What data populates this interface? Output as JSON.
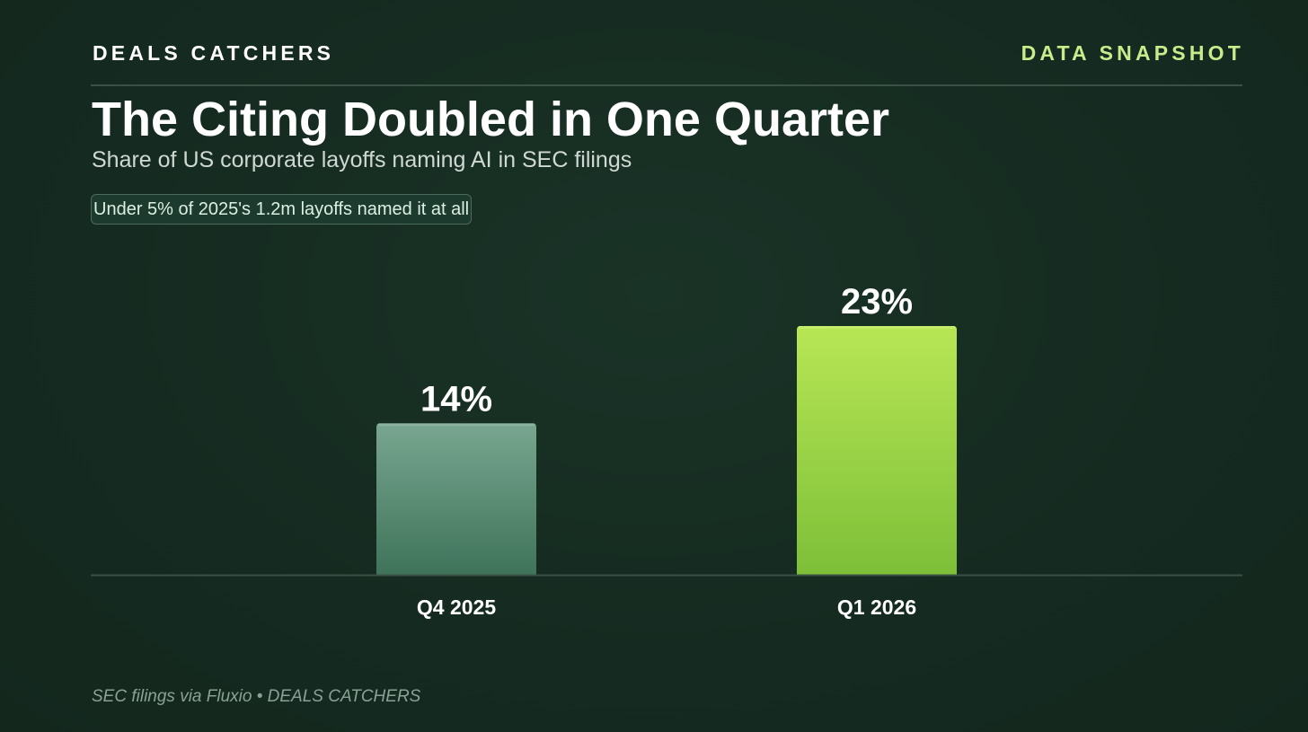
{
  "header": {
    "brand": "DEALS CATCHERS",
    "tag": "DATA SNAPSHOT"
  },
  "title": "The Citing Doubled in One Quarter",
  "subtitle": "Share of US corporate layoffs naming AI in SEC filings",
  "note": "Under 5% of 2025's 1.2m layoffs named it at all",
  "footer": "SEC filings via Fluxio • DEALS CATCHERS",
  "colors": {
    "background": "#162d22",
    "accent": "#c8ec8c",
    "bar_q4": "#5f917a",
    "bar_q1": "#9ad447"
  },
  "chart_data": {
    "type": "bar",
    "categories": [
      "Q4 2025",
      "Q1 2026"
    ],
    "values": [
      14,
      23
    ],
    "value_labels": [
      "14%",
      "23%"
    ],
    "unit": "%",
    "ylim": [
      0,
      26
    ],
    "grid": false,
    "legend": "none"
  }
}
